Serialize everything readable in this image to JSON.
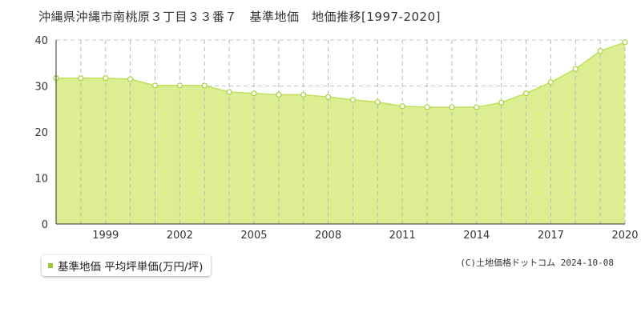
{
  "chart_data": {
    "type": "area",
    "title": "沖縄県沖縄市南桃原３丁目３３番７　基準地価　地価推移[1997-2020]",
    "xlabel": "",
    "ylabel": "",
    "xlim": [
      1997,
      2020
    ],
    "ylim": [
      0,
      40
    ],
    "yticks": [
      0,
      10,
      20,
      30,
      40
    ],
    "xtick_labels": [
      "1999",
      "2002",
      "2005",
      "2008",
      "2011",
      "2014",
      "2017",
      "2020"
    ],
    "grid": true,
    "series": [
      {
        "name": "基準地価 平均坪単価(万円/坪)",
        "color": "#99cc33",
        "fill": "#dded91",
        "x": [
          1997,
          1998,
          1999,
          2000,
          2001,
          2002,
          2003,
          2004,
          2005,
          2006,
          2007,
          2008,
          2009,
          2010,
          2011,
          2012,
          2013,
          2014,
          2015,
          2016,
          2017,
          2018,
          2019,
          2020
        ],
        "values": [
          31.7,
          31.7,
          31.7,
          31.5,
          30.1,
          30.1,
          30.1,
          28.7,
          28.4,
          28.1,
          28.1,
          27.6,
          27.0,
          26.5,
          25.6,
          25.4,
          25.4,
          25.4,
          26.4,
          28.4,
          30.8,
          33.7,
          37.6,
          39.5
        ]
      }
    ]
  },
  "legend": {
    "label": "基準地価 平均坪単価(万円/坪)"
  },
  "copyright": "(C)土地価格ドットコム 2024-10-08"
}
